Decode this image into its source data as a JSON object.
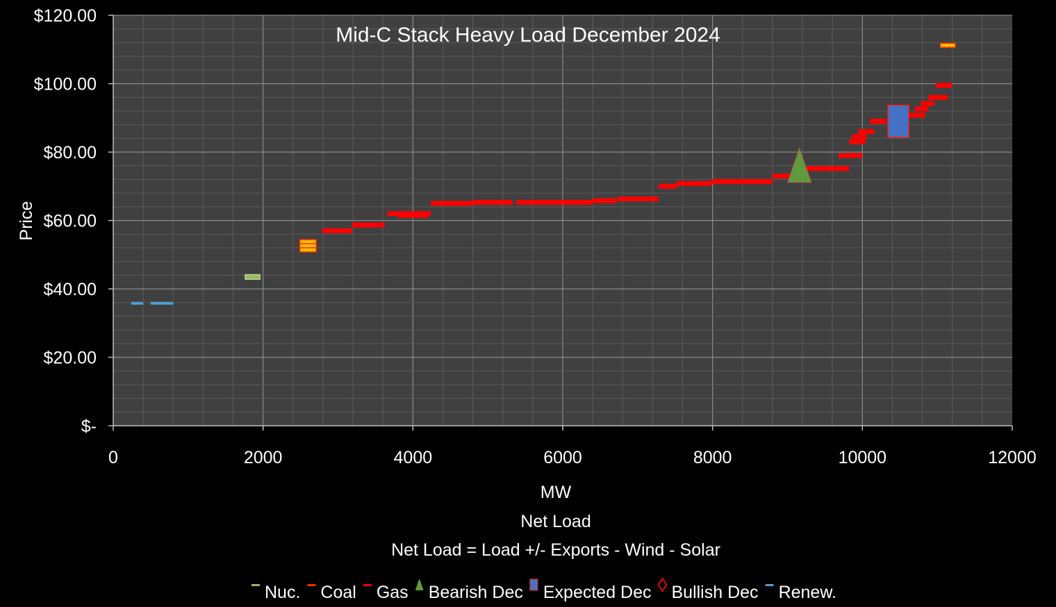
{
  "chart_data": {
    "type": "scatter",
    "title": "Mid-C Stack Heavy Load December 2024",
    "ylabel": "Price",
    "xlabel_lines": [
      "MW",
      "Net Load",
      "Net Load = Load +/- Exports - Wind - Solar"
    ],
    "xlim": [
      0,
      12000
    ],
    "ylim": [
      0,
      120
    ],
    "x_ticks": [
      "0",
      "2000",
      "4000",
      "6000",
      "8000",
      "10000",
      "12000"
    ],
    "y_ticks": [
      "$-",
      "$20.00",
      "$40.00",
      "$60.00",
      "$80.00",
      "$100.00",
      "$120.00"
    ],
    "grid": true,
    "legend_position": "bottom",
    "plot_background": "#404040",
    "grid_color": "#5c5c5c",
    "series": [
      {
        "name": "Nuc.",
        "marker": "dash",
        "color": "#9bbb59",
        "points": [
          {
            "x0": 1760,
            "x1": 1960,
            "y": 43.5
          }
        ]
      },
      {
        "name": "Coal",
        "marker": "dash",
        "color": "#ff2a00",
        "fill": "#ffc000",
        "points": [
          {
            "x0": 2490,
            "x1": 2710,
            "y": 53.8
          },
          {
            "x0": 2490,
            "x1": 2710,
            "y": 52.6
          },
          {
            "x0": 2490,
            "x1": 2710,
            "y": 51.4
          },
          {
            "x0": 11040,
            "x1": 11240,
            "y": 111.2
          }
        ]
      },
      {
        "name": "Gas",
        "marker": "dash",
        "color": "#ff0000",
        "points": [
          {
            "x0": 2790,
            "x1": 3190,
            "y": 57
          },
          {
            "x0": 3190,
            "x1": 3620,
            "y": 58.7
          },
          {
            "x0": 3660,
            "x1": 4240,
            "y": 62
          },
          {
            "x0": 3800,
            "x1": 4200,
            "y": 61.5
          },
          {
            "x0": 4240,
            "x1": 4800,
            "y": 65
          },
          {
            "x0": 4800,
            "x1": 5330,
            "y": 65.3
          },
          {
            "x0": 5380,
            "x1": 6400,
            "y": 65.3
          },
          {
            "x0": 6400,
            "x1": 6720,
            "y": 65.8
          },
          {
            "x0": 6730,
            "x1": 7280,
            "y": 66.3
          },
          {
            "x0": 7280,
            "x1": 7520,
            "y": 70
          },
          {
            "x0": 7520,
            "x1": 7980,
            "y": 70.8
          },
          {
            "x0": 7980,
            "x1": 8280,
            "y": 71.4
          },
          {
            "x0": 8280,
            "x1": 8800,
            "y": 71.4
          },
          {
            "x0": 8800,
            "x1": 9180,
            "y": 73
          },
          {
            "x0": 9180,
            "x1": 9820,
            "y": 75.2
          },
          {
            "x0": 9680,
            "x1": 10000,
            "y": 79
          },
          {
            "x0": 9820,
            "x1": 10040,
            "y": 83
          },
          {
            "x0": 9860,
            "x1": 10060,
            "y": 84.5
          },
          {
            "x0": 9940,
            "x1": 10160,
            "y": 86
          },
          {
            "x0": 10100,
            "x1": 10320,
            "y": 89
          },
          {
            "x0": 10600,
            "x1": 10840,
            "y": 90.8
          },
          {
            "x0": 10700,
            "x1": 10880,
            "y": 92.6
          },
          {
            "x0": 10780,
            "x1": 10960,
            "y": 94.2
          },
          {
            "x0": 10880,
            "x1": 11140,
            "y": 96
          },
          {
            "x0": 10980,
            "x1": 11200,
            "y": 99.5
          }
        ]
      },
      {
        "name": "Bearish Dec",
        "marker": "triangle",
        "color": "#5f9a3c",
        "points": [
          {
            "x": 9160,
            "y": 75
          }
        ]
      },
      {
        "name": "Expected Dec",
        "marker": "square",
        "color": "#4472c4",
        "points": [
          {
            "x": 10480,
            "y": 89
          }
        ]
      },
      {
        "name": "Bullish Dec",
        "marker": "diamond",
        "color": "#ff0000",
        "points": []
      },
      {
        "name": "Renew.",
        "marker": "dash",
        "color": "#4f9fd6",
        "points": [
          {
            "x0": 240,
            "x1": 400,
            "y": 35.8
          },
          {
            "x0": 500,
            "x1": 800,
            "y": 35.8
          }
        ]
      }
    ]
  }
}
